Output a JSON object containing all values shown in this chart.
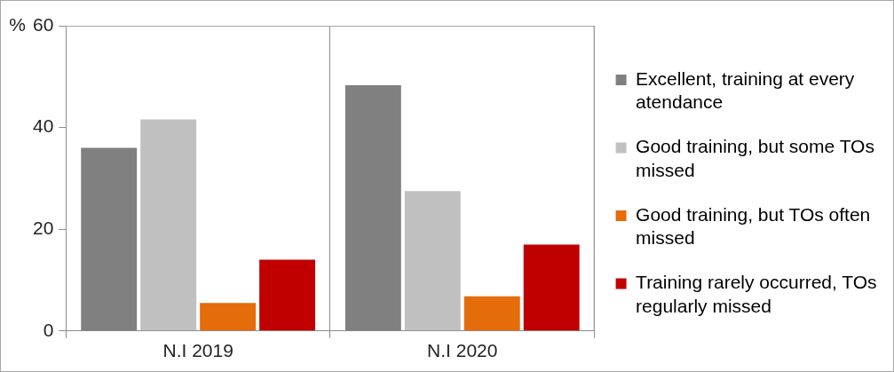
{
  "chart_data": {
    "type": "bar",
    "categories": [
      "N.I 2019",
      "N.I 2020"
    ],
    "series": [
      {
        "name": "Excellent, training at every atendance",
        "color": "#808080",
        "values": [
          36,
          48.3
        ]
      },
      {
        "name": "Good training, but some TOs missed",
        "color": "#c0c0c0",
        "values": [
          41.6,
          27.5
        ]
      },
      {
        "name": "Good training, but TOs often missed",
        "color": "#e46c0a",
        "values": [
          5.5,
          6.8
        ]
      },
      {
        "name": "Training rarely occurred, TOs regularly missed",
        "color": "#c00000",
        "values": [
          14,
          17
        ]
      }
    ],
    "ylabel": "%",
    "ylim": [
      0,
      60
    ],
    "yticks": [
      0,
      20,
      40,
      60
    ],
    "grid": "x",
    "legend": "right"
  }
}
